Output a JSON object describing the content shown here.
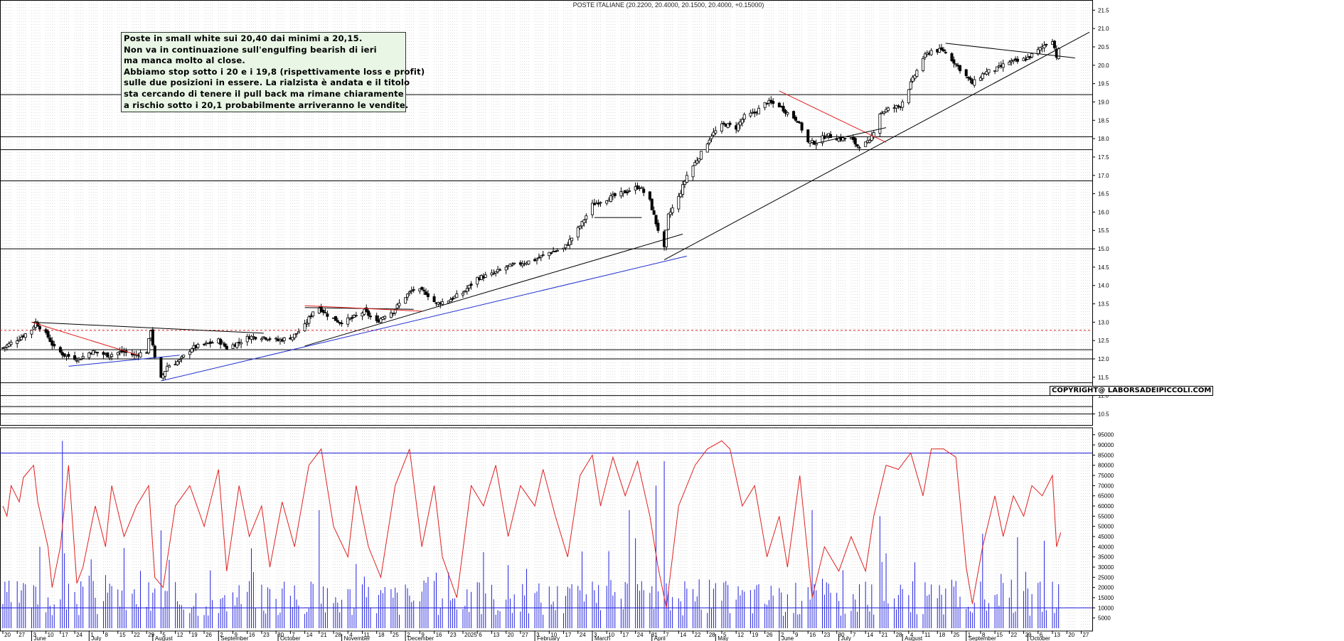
{
  "title": "POSTE ITALIANE (20.2200, 20.4000, 20.1500, 20.4000, +0.15000)",
  "annotation": {
    "lines": [
      "Poste in small white sui 20,40 dai minimi a 20,15.",
      "Non va in continuazione sull'engulfing bearish di ieri",
      "ma manca molto al close.",
      "Abbiamo stop sotto i 20 e i 19,8 (rispettivamente loss e profit)",
      "sulle due posizioni in essere. La rialzista è andata e il titolo",
      "sta cercando di tenere il pull back ma rimane chiaramente",
      "a rischio sotto i 20,1 probabilmente arriveranno le vendite."
    ]
  },
  "copyright": "COPYRIGHT@ LABORSADEIPICCOLI.COM",
  "colors": {
    "candle": "#000000",
    "grid": "#b4b4b4",
    "oscillator": "#e02020",
    "volume": "#2020dd",
    "trend_red": "#e02020",
    "trend_blue": "#2030d0",
    "trend_black": "#000000",
    "level_line": "#000000",
    "dashed_level": "#e02020",
    "osc_bounds": "#2020dd"
  },
  "chart_data": [
    {
      "type": "candlestick",
      "title": "POSTE ITALIANE (20.2200, 20.4000, 20.1500, 20.4000, +0.15000)",
      "y_ticks": [
        "10.5",
        "11.0",
        "11.5",
        "12.0",
        "12.5",
        "13.0",
        "13.5",
        "14.0",
        "14.5",
        "15.0",
        "15.5",
        "16.0",
        "16.5",
        "17.0",
        "17.5",
        "18.0",
        "18.5",
        "19.0",
        "19.5",
        "20.0",
        "20.5",
        "21.0",
        "21.5"
      ],
      "ylim": [
        10.2,
        21.7
      ],
      "horizontal_levels": [
        15.0,
        16.85,
        17.7,
        18.05,
        19.2,
        12.25,
        12.0,
        11.35,
        11.0,
        10.7,
        10.5
      ],
      "dashed_level": 12.78,
      "close_anchors": [
        [
          "2024-05-20",
          12.3
        ],
        [
          "2024-05-29",
          12.6
        ],
        [
          "2024-06-03",
          12.8
        ],
        [
          "2024-06-05",
          13.0
        ],
        [
          "2024-06-11",
          12.6
        ],
        [
          "2024-06-14",
          12.3
        ],
        [
          "2024-06-19",
          12.1
        ],
        [
          "2024-06-26",
          12.0
        ],
        [
          "2024-07-02",
          12.2
        ],
        [
          "2024-07-10",
          12.1
        ],
        [
          "2024-07-17",
          12.2
        ],
        [
          "2024-07-23",
          12.1
        ],
        [
          "2024-07-29",
          12.2
        ],
        [
          "2024-07-31",
          12.8
        ],
        [
          "2024-08-02",
          12.0
        ],
        [
          "2024-08-05",
          11.45
        ],
        [
          "2024-08-08",
          11.8
        ],
        [
          "2024-08-14",
          11.95
        ],
        [
          "2024-08-20",
          12.3
        ],
        [
          "2024-08-27",
          12.4
        ],
        [
          "2024-09-02",
          12.5
        ],
        [
          "2024-09-06",
          12.3
        ],
        [
          "2024-09-10",
          12.4
        ],
        [
          "2024-09-17",
          12.6
        ],
        [
          "2024-09-24",
          12.6
        ],
        [
          "2024-10-01",
          12.5
        ],
        [
          "2024-10-08",
          12.6
        ],
        [
          "2024-10-14",
          12.9
        ],
        [
          "2024-10-18",
          13.3
        ],
        [
          "2024-10-21",
          13.4
        ],
        [
          "2024-10-25",
          13.2
        ],
        [
          "2024-10-31",
          13.0
        ],
        [
          "2024-11-06",
          13.1
        ],
        [
          "2024-11-12",
          13.3
        ],
        [
          "2024-11-18",
          13.0
        ],
        [
          "2024-11-22",
          13.2
        ],
        [
          "2024-11-26",
          13.3
        ],
        [
          "2024-12-02",
          13.7
        ],
        [
          "2024-12-06",
          13.9
        ],
        [
          "2024-12-12",
          13.8
        ],
        [
          "2024-12-17",
          13.5
        ],
        [
          "2024-12-23",
          13.6
        ],
        [
          "2024-12-30",
          13.8
        ],
        [
          "2025-01-06",
          14.2
        ],
        [
          "2025-01-13",
          14.3
        ],
        [
          "2025-01-20",
          14.5
        ],
        [
          "2025-01-27",
          14.6
        ],
        [
          "2025-02-03",
          14.7
        ],
        [
          "2025-02-10",
          14.9
        ],
        [
          "2025-02-17",
          15.0
        ],
        [
          "2025-02-21",
          15.3
        ],
        [
          "2025-02-26",
          15.7
        ],
        [
          "2025-03-03",
          16.2
        ],
        [
          "2025-03-07",
          16.3
        ],
        [
          "2025-03-12",
          16.4
        ],
        [
          "2025-03-17",
          16.5
        ],
        [
          "2025-03-21",
          16.6
        ],
        [
          "2025-03-26",
          16.7
        ],
        [
          "2025-03-31",
          16.3
        ],
        [
          "2025-04-03",
          15.7
        ],
        [
          "2025-04-07",
          15.0
        ],
        [
          "2025-04-09",
          15.9
        ],
        [
          "2025-04-14",
          16.4
        ],
        [
          "2025-04-18",
          17.0
        ],
        [
          "2025-04-25",
          17.6
        ],
        [
          "2025-04-30",
          18.1
        ],
        [
          "2025-05-06",
          18.4
        ],
        [
          "2025-05-12",
          18.3
        ],
        [
          "2025-05-16",
          18.6
        ],
        [
          "2025-05-21",
          18.7
        ],
        [
          "2025-05-27",
          19.0
        ],
        [
          "2025-06-02",
          18.9
        ],
        [
          "2025-06-06",
          18.7
        ],
        [
          "2025-06-11",
          18.5
        ],
        [
          "2025-06-16",
          17.9
        ],
        [
          "2025-06-20",
          17.9
        ],
        [
          "2025-06-25",
          18.1
        ],
        [
          "2025-07-01",
          18.0
        ],
        [
          "2025-07-07",
          18.0
        ],
        [
          "2025-07-10",
          17.8
        ],
        [
          "2025-07-16",
          17.9
        ],
        [
          "2025-07-21",
          18.7
        ],
        [
          "2025-07-25",
          18.8
        ],
        [
          "2025-07-31",
          18.9
        ],
        [
          "2025-08-05",
          19.5
        ],
        [
          "2025-08-11",
          20.2
        ],
        [
          "2025-08-15",
          20.4
        ],
        [
          "2025-08-21",
          20.4
        ],
        [
          "2025-08-26",
          20.1
        ],
        [
          "2025-09-01",
          19.7
        ],
        [
          "2025-09-04",
          19.5
        ],
        [
          "2025-09-10",
          19.8
        ],
        [
          "2025-09-16",
          19.9
        ],
        [
          "2025-09-22",
          20.1
        ],
        [
          "2025-09-26",
          20.1
        ],
        [
          "2025-10-01",
          20.2
        ],
        [
          "2025-10-06",
          20.4
        ],
        [
          "2025-10-10",
          20.6
        ],
        [
          "2025-10-13",
          20.7
        ],
        [
          "2025-10-15",
          20.25
        ],
        [
          "2025-10-16",
          20.4
        ]
      ],
      "trendlines": [
        {
          "color": "black",
          "from": [
            "2024-10-14",
            13.4
          ],
          "to": [
            "2024-12-06",
            13.35
          ]
        },
        {
          "color": "red",
          "from": [
            "2024-10-14",
            13.45
          ],
          "to": [
            "2024-12-10",
            13.3
          ]
        },
        {
          "color": "black",
          "from": [
            "2024-06-03",
            13.0
          ],
          "to": [
            "2024-09-24",
            12.7
          ]
        },
        {
          "color": "red",
          "from": [
            "2024-06-03",
            13.0
          ],
          "to": [
            "2024-07-25",
            12.1
          ]
        },
        {
          "color": "blue",
          "from": [
            "2024-06-21",
            11.8
          ],
          "to": [
            "2024-08-14",
            12.1
          ]
        },
        {
          "color": "blue",
          "from": [
            "2024-08-05",
            11.4
          ],
          "to": [
            "2025-04-18",
            14.8
          ]
        },
        {
          "color": "black",
          "from": [
            "2024-10-14",
            12.35
          ],
          "to": [
            "2025-04-16",
            15.4
          ]
        },
        {
          "color": "black",
          "from": [
            "2025-03-04",
            15.85
          ],
          "to": [
            "2025-03-27",
            15.85
          ]
        },
        {
          "color": "black",
          "from": [
            "2025-04-07",
            14.7
          ],
          "to": [
            "2025-10-31",
            20.9
          ]
        },
        {
          "color": "red",
          "from": [
            "2025-06-02",
            19.3
          ],
          "to": [
            "2025-07-24",
            17.9
          ]
        },
        {
          "color": "black",
          "from": [
            "2025-06-18",
            17.85
          ],
          "to": [
            "2025-07-24",
            18.3
          ]
        },
        {
          "color": "black",
          "from": [
            "2025-08-22",
            20.6
          ],
          "to": [
            "2025-10-24",
            20.2
          ]
        }
      ]
    },
    {
      "type": "line",
      "name": "oscillator",
      "y_ticks": [
        "5000",
        "10000",
        "15000",
        "20000",
        "25000",
        "30000",
        "35000",
        "40000",
        "45000",
        "50000",
        "55000",
        "60000",
        "65000",
        "70000",
        "75000",
        "80000",
        "85000",
        "90000",
        "95000"
      ],
      "ylim": [
        0,
        97000
      ],
      "upper_band": 86000,
      "lower_band": 10000,
      "anchors": [
        [
          "2024-05-20",
          60000
        ],
        [
          "2024-05-22",
          55000
        ],
        [
          "2024-05-24",
          70000
        ],
        [
          "2024-05-28",
          62000
        ],
        [
          "2024-05-30",
          74000
        ],
        [
          "2024-06-04",
          80000
        ],
        [
          "2024-06-06",
          62000
        ],
        [
          "2024-06-11",
          40000
        ],
        [
          "2024-06-13",
          20000
        ],
        [
          "2024-06-17",
          40000
        ],
        [
          "2024-06-21",
          80000
        ],
        [
          "2024-06-25",
          22000
        ],
        [
          "2024-06-28",
          30000
        ],
        [
          "2024-07-04",
          60000
        ],
        [
          "2024-07-09",
          40000
        ],
        [
          "2024-07-12",
          70000
        ],
        [
          "2024-07-18",
          45000
        ],
        [
          "2024-07-24",
          60000
        ],
        [
          "2024-07-30",
          70000
        ],
        [
          "2024-08-02",
          25000
        ],
        [
          "2024-08-06",
          20000
        ],
        [
          "2024-08-12",
          60000
        ],
        [
          "2024-08-19",
          70000
        ],
        [
          "2024-08-26",
          50000
        ],
        [
          "2024-09-02",
          78000
        ],
        [
          "2024-09-06",
          28000
        ],
        [
          "2024-09-12",
          70000
        ],
        [
          "2024-09-17",
          45000
        ],
        [
          "2024-09-23",
          60000
        ],
        [
          "2024-09-27",
          30000
        ],
        [
          "2024-10-03",
          62000
        ],
        [
          "2024-10-09",
          40000
        ],
        [
          "2024-10-16",
          80000
        ],
        [
          "2024-10-22",
          88000
        ],
        [
          "2024-10-28",
          50000
        ],
        [
          "2024-11-04",
          35000
        ],
        [
          "2024-11-08",
          70000
        ],
        [
          "2024-11-14",
          40000
        ],
        [
          "2024-11-20",
          25000
        ],
        [
          "2024-11-27",
          70000
        ],
        [
          "2024-12-04",
          88000
        ],
        [
          "2024-12-10",
          40000
        ],
        [
          "2024-12-16",
          70000
        ],
        [
          "2024-12-20",
          35000
        ],
        [
          "2024-12-27",
          15000
        ],
        [
          "2025-01-03",
          70000
        ],
        [
          "2025-01-09",
          60000
        ],
        [
          "2025-01-15",
          80000
        ],
        [
          "2025-01-21",
          45000
        ],
        [
          "2025-01-27",
          70000
        ],
        [
          "2025-02-03",
          60000
        ],
        [
          "2025-02-07",
          78000
        ],
        [
          "2025-02-13",
          55000
        ],
        [
          "2025-02-19",
          35000
        ],
        [
          "2025-02-25",
          75000
        ],
        [
          "2025-03-03",
          85000
        ],
        [
          "2025-03-07",
          60000
        ],
        [
          "2025-03-13",
          84000
        ],
        [
          "2025-03-19",
          65000
        ],
        [
          "2025-03-25",
          82000
        ],
        [
          "2025-03-31",
          55000
        ],
        [
          "2025-04-04",
          30000
        ],
        [
          "2025-04-08",
          10000
        ],
        [
          "2025-04-14",
          60000
        ],
        [
          "2025-04-22",
          80000
        ],
        [
          "2025-04-28",
          88000
        ],
        [
          "2025-05-05",
          92000
        ],
        [
          "2025-05-09",
          88000
        ],
        [
          "2025-05-15",
          60000
        ],
        [
          "2025-05-21",
          70000
        ],
        [
          "2025-05-27",
          35000
        ],
        [
          "2025-06-02",
          55000
        ],
        [
          "2025-06-06",
          30000
        ],
        [
          "2025-06-12",
          75000
        ],
        [
          "2025-06-18",
          15000
        ],
        [
          "2025-06-24",
          40000
        ],
        [
          "2025-07-01",
          28000
        ],
        [
          "2025-07-07",
          45000
        ],
        [
          "2025-07-14",
          28000
        ],
        [
          "2025-07-18",
          55000
        ],
        [
          "2025-07-24",
          80000
        ],
        [
          "2025-07-30",
          78000
        ],
        [
          "2025-08-05",
          86000
        ],
        [
          "2025-08-11",
          65000
        ],
        [
          "2025-08-15",
          88000
        ],
        [
          "2025-08-21",
          88000
        ],
        [
          "2025-08-27",
          84000
        ],
        [
          "2025-09-01",
          30000
        ],
        [
          "2025-09-04",
          12000
        ],
        [
          "2025-09-09",
          40000
        ],
        [
          "2025-09-15",
          65000
        ],
        [
          "2025-09-19",
          45000
        ],
        [
          "2025-09-24",
          65000
        ],
        [
          "2025-09-29",
          55000
        ],
        [
          "2025-10-03",
          70000
        ],
        [
          "2025-10-08",
          65000
        ],
        [
          "2025-10-13",
          75000
        ],
        [
          "2025-10-15",
          40000
        ],
        [
          "2025-10-17",
          47000
        ]
      ]
    },
    {
      "type": "bar",
      "name": "volume",
      "spikes": [
        [
          "2024-06-18",
          92000
        ],
        [
          "2024-06-07",
          40000
        ],
        [
          "2024-08-05",
          48000
        ],
        [
          "2024-10-21",
          58000
        ],
        [
          "2025-04-07",
          82000
        ],
        [
          "2025-04-03",
          70000
        ],
        [
          "2025-06-18",
          58000
        ],
        [
          "2025-07-21",
          55000
        ],
        [
          "2025-03-21",
          58000
        ]
      ],
      "baseline_typical": 15000
    }
  ],
  "x_axis": {
    "days": [
      "20",
      "27",
      "3",
      "10",
      "17",
      "24",
      "1",
      "8",
      "15",
      "22",
      "29",
      "5",
      "12",
      "19",
      "26",
      "2",
      "9",
      "16",
      "23",
      "30",
      "7",
      "14",
      "21",
      "28",
      "4",
      "11",
      "18",
      "25",
      "2",
      "9",
      "16",
      "23",
      "2025",
      "6",
      "13",
      "20",
      "27",
      "3",
      "10",
      "17",
      "24",
      "3",
      "10",
      "17",
      "24",
      "31",
      "7",
      "14",
      "22",
      "28",
      "5",
      "12",
      "19",
      "26",
      "2",
      "9",
      "16",
      "23",
      "30",
      "7",
      "14",
      "21",
      "28",
      "4",
      "11",
      "18",
      "25",
      "1",
      "8",
      "15",
      "22",
      "29",
      "6",
      "13",
      "20",
      "27"
    ],
    "months": [
      [
        "June",
        "2024-06-03"
      ],
      [
        "July",
        "2024-07-01"
      ],
      [
        "August",
        "2024-08-01"
      ],
      [
        "September",
        "2024-09-02"
      ],
      [
        "October",
        "2024-10-01"
      ],
      [
        "November",
        "2024-11-01"
      ],
      [
        "December",
        "2024-12-02"
      ],
      [
        "February",
        "2025-02-03"
      ],
      [
        "March",
        "2025-03-03"
      ],
      [
        "April",
        "2025-04-01"
      ],
      [
        "May",
        "2025-05-02"
      ],
      [
        "June",
        "2025-06-02"
      ],
      [
        "July",
        "2025-07-01"
      ],
      [
        "August",
        "2025-08-01"
      ],
      [
        "September",
        "2025-09-01"
      ],
      [
        "October",
        "2025-10-01"
      ]
    ],
    "start_date": "2024-05-20",
    "end_date": "2025-10-31"
  }
}
